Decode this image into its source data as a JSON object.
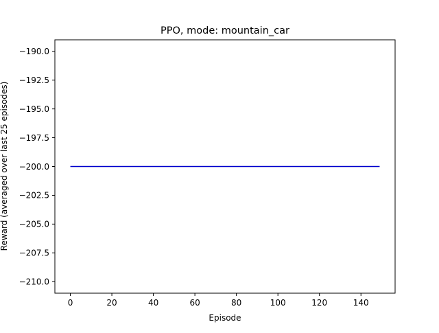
{
  "chart_data": {
    "type": "line",
    "title": "PPO, mode: mountain_car",
    "xlabel": "Episode",
    "ylabel": "Reward (averaged over last 25 episodes)",
    "xlim": [
      -7.45,
      156.45
    ],
    "ylim": [
      -211.0,
      -189.0
    ],
    "x_ticks": [
      0,
      20,
      40,
      60,
      80,
      100,
      120,
      140
    ],
    "y_ticks": [
      -190.0,
      -192.5,
      -195.0,
      -197.5,
      -200.0,
      -202.5,
      -205.0,
      -207.5,
      -210.0
    ],
    "x_tick_labels": [
      "0",
      "20",
      "40",
      "60",
      "80",
      "100",
      "120",
      "140"
    ],
    "y_tick_labels": [
      "−190.0",
      "−192.5",
      "−195.0",
      "−197.5",
      "−200.0",
      "−202.5",
      "−205.0",
      "−207.5",
      "−210.0"
    ],
    "grid": false,
    "series": [
      {
        "color": "#0000cc",
        "x": [
          0,
          149
        ],
        "y": [
          -200.0,
          -200.0
        ]
      }
    ]
  }
}
